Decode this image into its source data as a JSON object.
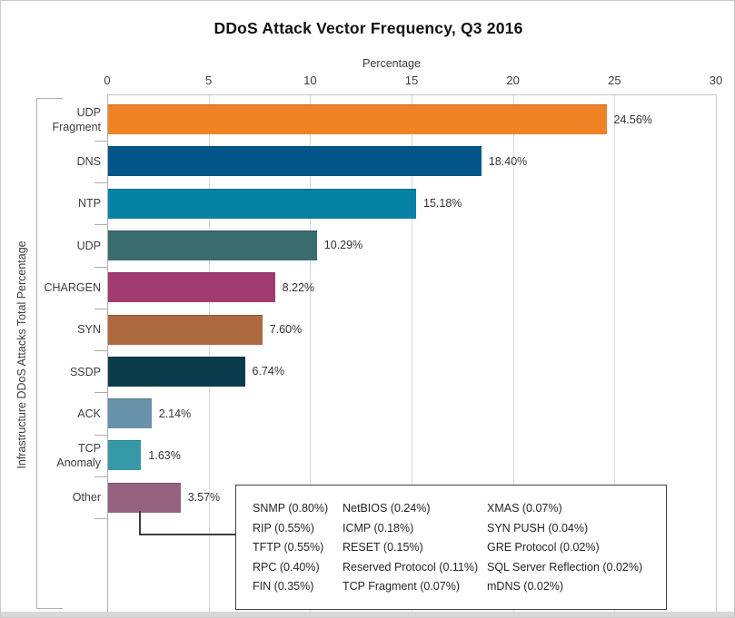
{
  "chart_data": {
    "type": "bar",
    "orientation": "horizontal",
    "title": "DDoS Attack Vector Frequency, Q3 2016",
    "xlabel": "Percentage",
    "ylabel": "Infrastructure DDoS Attacks Total Percentage",
    "xlim": [
      0,
      30
    ],
    "xticks": [
      "0",
      "5",
      "10",
      "15",
      "20",
      "25",
      "30"
    ],
    "grid": "vertical-gridlines-on",
    "legend_position": "none",
    "categories": [
      "UDP\nFragment",
      "DNS",
      "NTP",
      "UDP",
      "CHARGEN",
      "SYN",
      "SSDP",
      "ACK",
      "TCP\nAnomaly",
      "Other"
    ],
    "values": [
      24.56,
      18.4,
      15.18,
      10.29,
      8.22,
      7.6,
      6.74,
      2.14,
      1.63,
      3.57
    ],
    "value_labels": [
      "24.56%",
      "18.40%",
      "15.18%",
      "10.29%",
      "8.22%",
      "7.60%",
      "6.74%",
      "2.14%",
      "1.63%",
      "3.57%"
    ],
    "bar_colors": [
      "#EF8326",
      "#04568A",
      "#0782A4",
      "#3A6C70",
      "#A23B72",
      "#AD6A41",
      "#0A3B4B",
      "#6792A9",
      "#3699A7",
      "#96617F"
    ],
    "other_breakdown_columns": [
      [
        "SNMP (0.80%)",
        "RIP (0.55%)",
        "TFTP (0.55%)",
        "RPC (0.40%)",
        "FIN (0.35%)"
      ],
      [
        "NetBIOS (0.24%)",
        "ICMP (0.18%)",
        "RESET (0.15%)",
        "Reserved Protocol (0.11%)",
        "TCP Fragment (0.07%)"
      ],
      [
        "XMAS (0.07%)",
        "SYN PUSH (0.04%)",
        "GRE Protocol (0.02%)",
        "SQL Server Reflection (0.02%)",
        "mDNS (0.02%)"
      ]
    ],
    "colors": {
      "gridline": "#d9d9d9",
      "axis": "#aeaeae",
      "text": "#3d3d3d",
      "callout_border": "#3d3d3d",
      "bottom_strip": "#d8d8d8"
    }
  }
}
